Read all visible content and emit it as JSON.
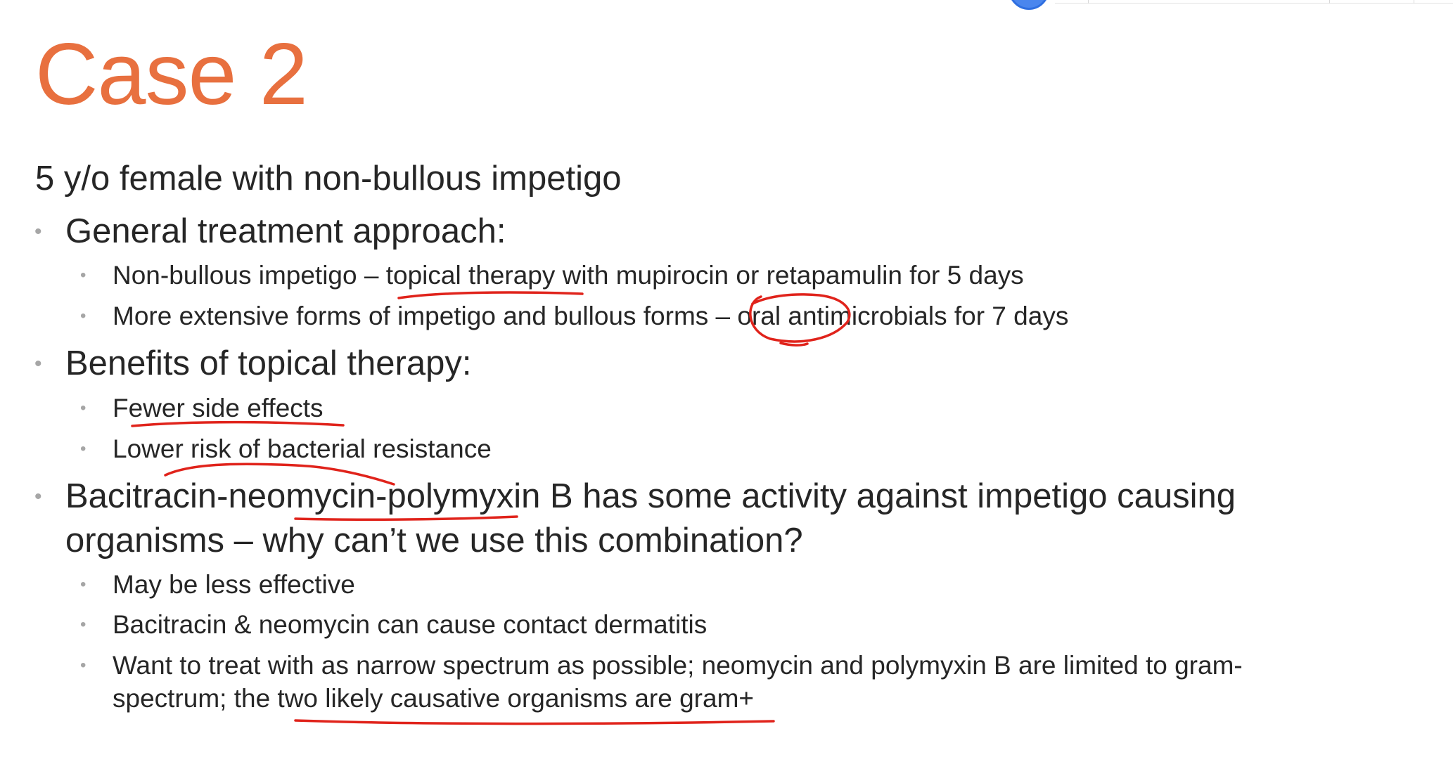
{
  "slide": {
    "title": "Case 2",
    "subtitle": "5 y/o female with non-bullous impetigo",
    "bullet_glyph": "•",
    "sections": [
      {
        "heading": "General treatment approach:",
        "items": [
          "Non-bullous impetigo – topical therapy with mupirocin or retapamulin for 5 days",
          "More extensive forms of impetigo and bullous forms – oral antimicrobials for 7 days"
        ]
      },
      {
        "heading": "Benefits of topical therapy:",
        "items": [
          "Fewer side effects",
          "Lower risk of bacterial resistance"
        ]
      },
      {
        "heading": "Bacitracin-neomycin-polymyxin B has some activity against impetigo causing organisms – why can’t we use this combination?",
        "items": [
          "May be less effective",
          "Bacitracin & neomycin can cause contact dermatitis",
          "Want to treat with as narrow spectrum as possible; neomycin and polymyxin B are limited to gram- spectrum; the two likely causative organisms are gram+"
        ]
      }
    ]
  },
  "annotations": {
    "ink_color": "#e0231b",
    "underlined_phrases": [
      "topical therapy",
      "Fewer side effects",
      "Lower risk of bacterial",
      "mycin-polymy",
      "two likely causative organisms are gram+"
    ],
    "circled_phrase": "– oral"
  },
  "theme": {
    "title_color": "#e8703f",
    "text_color": "#262626",
    "bullet_color": "#a6a6a6",
    "indicator_color": "#4a86ee"
  }
}
